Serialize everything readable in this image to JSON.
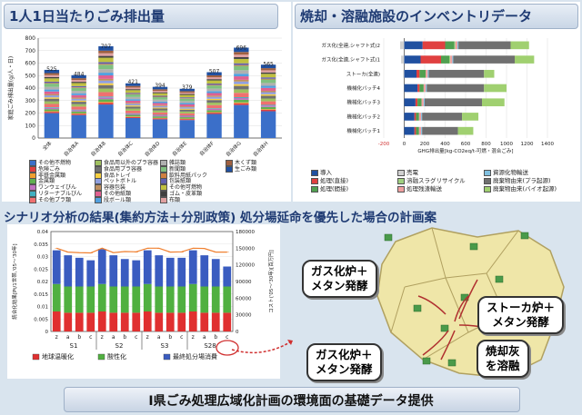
{
  "titles": {
    "waste_per_capita": "1人1日当たりごみ排出量",
    "inventory": "焼却・溶融施設のインベントリデータ",
    "scenario": "シナリオ分析の結果(集約方法＋分別政策) 処分場延命を優先した場合の計画案",
    "footer": "I県ごみ処理広域化計画の環境面の基礎データ提供"
  },
  "callouts": {
    "gas_methane_top": "ガス化炉＋\nメタン発酵",
    "stoker_methane": "ストーカ炉＋\nメタン発酵",
    "gas_methane_bottom": "ガス化炉＋\nメタン発酵",
    "ash_melting": "焼却灰\nを溶融"
  },
  "chart_data": [
    {
      "type": "bar",
      "stacked": true,
      "categories": [
        "全体",
        "自治体A",
        "自治体B",
        "自治体C",
        "自治体D",
        "自治体E",
        "自治体F",
        "自治体G",
        "自治体H"
      ],
      "totals": [
        525,
        484,
        707,
        421,
        394,
        379,
        507,
        696,
        565
      ],
      "ylabel": "家庭ごみ排出量(g/人・日)",
      "ylim": [
        0,
        800
      ],
      "yticks": [
        0,
        100,
        200,
        300,
        400,
        500,
        600,
        700,
        800
      ],
      "legend": [
        "その他不燃物",
        "危険ごみ",
        "非鉄金属類",
        "金属類",
        "ワンウェイびん",
        "リターナブルびん",
        "その他プラ類",
        "食品用以外のプラ容器",
        "食品用プラ容器",
        "食品トレイ",
        "ペットボトル",
        "容器包装",
        "その他紙類",
        "段ボール類",
        "雑誌類",
        "新聞類",
        "飲料用紙パック",
        "包装紙類",
        "その他可燃物",
        "ゴム・皮革類",
        "布類",
        "木くず類",
        "生ごみ類"
      ],
      "colors": [
        "#3b6fc9",
        "#e04040",
        "#f0a030",
        "#60b050",
        "#c070c0",
        "#40b0c0",
        "#f07070",
        "#a0c060",
        "#707070",
        "#f8d040",
        "#90a0e0",
        "#c09060",
        "#e06090",
        "#50a0e0",
        "#b0b0b0",
        "#80c080",
        "#d08040",
        "#6060b0",
        "#c0c040",
        "#404040",
        "#e0a0a0",
        "#a06040",
        "#2050a0"
      ]
    },
    {
      "type": "bar",
      "orientation": "horizontal",
      "stacked": true,
      "categories": [
        "ガス化(全連,シャフト式)2",
        "ガス化(全連,シャフト式)1",
        "ストーカ(全連)",
        "機械化バッチ4",
        "機械化バッチ3",
        "機械化バッチ2",
        "機械化バッチ1"
      ],
      "series": [
        {
          "name": "導入",
          "values": [
            180,
            160,
            120,
            130,
            110,
            100,
            100
          ]
        },
        {
          "name": "処理(直接)",
          "values": [
            220,
            200,
            30,
            20,
            20,
            15,
            15
          ]
        },
        {
          "name": "処理(間接)",
          "values": [
            90,
            80,
            60,
            40,
            40,
            30,
            30
          ]
        },
        {
          "name": "売電",
          "values": [
            -40,
            -30,
            -10,
            0,
            0,
            0,
            0
          ]
        },
        {
          "name": "溶融スラグリサイクル",
          "values": [
            10,
            10,
            0,
            0,
            0,
            0,
            0
          ]
        },
        {
          "name": "処理残渣輸送",
          "values": [
            20,
            20,
            20,
            20,
            20,
            20,
            20
          ]
        },
        {
          "name": "資源化物輸送",
          "values": [
            10,
            10,
            10,
            10,
            10,
            10,
            10
          ]
        },
        {
          "name": "廃棄物由来(プラ起源)",
          "values": [
            510,
            600,
            540,
            560,
            560,
            390,
            350
          ]
        },
        {
          "name": "廃棄物由来(バイオ起源)",
          "values": [
            180,
            190,
            100,
            220,
            220,
            160,
            150
          ]
        }
      ],
      "xlabel": "GHG排出量[kg-CO2eq/t-可燃・混合ごみ]",
      "xlim": [
        -200,
        1400
      ],
      "xticks": [
        -200,
        0,
        200,
        400,
        600,
        800,
        1000,
        1200,
        1400
      ],
      "colors": [
        "#2050a0",
        "#e04040",
        "#50a050",
        "#d0d0d0",
        "#a0d080",
        "#f0a0a0",
        "#80c0e0",
        "#707070",
        "#a0d070"
      ]
    },
    {
      "type": "bar",
      "stacked": true,
      "groups": [
        "S1",
        "S2",
        "S3",
        "S28"
      ],
      "subcategories": [
        "z",
        "a",
        "b",
        "c"
      ],
      "series": [
        {
          "name": "地球温暖化",
          "values": [
            0.008,
            0.0075,
            0.0075,
            0.0075,
            0.008,
            0.0075,
            0.0075,
            0.0075,
            0.008,
            0.0075,
            0.0075,
            0.0075,
            0.008,
            0.0075,
            0.0075,
            0.0075
          ]
        },
        {
          "name": "酸性化",
          "values": [
            0.011,
            0.0105,
            0.0105,
            0.0105,
            0.011,
            0.0105,
            0.0105,
            0.0105,
            0.011,
            0.0105,
            0.0105,
            0.0105,
            0.011,
            0.0105,
            0.0105,
            0.0105
          ]
        },
        {
          "name": "最終処分場消費",
          "values": [
            0.0135,
            0.0125,
            0.0115,
            0.0105,
            0.014,
            0.0125,
            0.011,
            0.0105,
            0.0135,
            0.0125,
            0.0115,
            0.0115,
            0.0135,
            0.0125,
            0.011,
            0.008
          ]
        }
      ],
      "cost": [
        150000,
        143000,
        142000,
        141500,
        150000,
        142000,
        144000,
        143500,
        150000,
        150000,
        143000,
        143500,
        150000,
        149500,
        143000,
        143000
      ],
      "ylabel": "統合化結果[Pt/1世帯,'05〜'30年]",
      "y2label": "コスト('05〜'30年)[百万円]",
      "ylim": [
        0,
        0.04
      ],
      "yticks": [
        0,
        0.005,
        0.01,
        0.015,
        0.02,
        0.025,
        0.03,
        0.035,
        0.04
      ],
      "y2ticks": [
        0,
        30000,
        60000,
        90000,
        120000,
        150000,
        180000
      ],
      "colors": [
        "#e03030",
        "#50b040",
        "#3a5cc0",
        "#f08030"
      ]
    }
  ]
}
